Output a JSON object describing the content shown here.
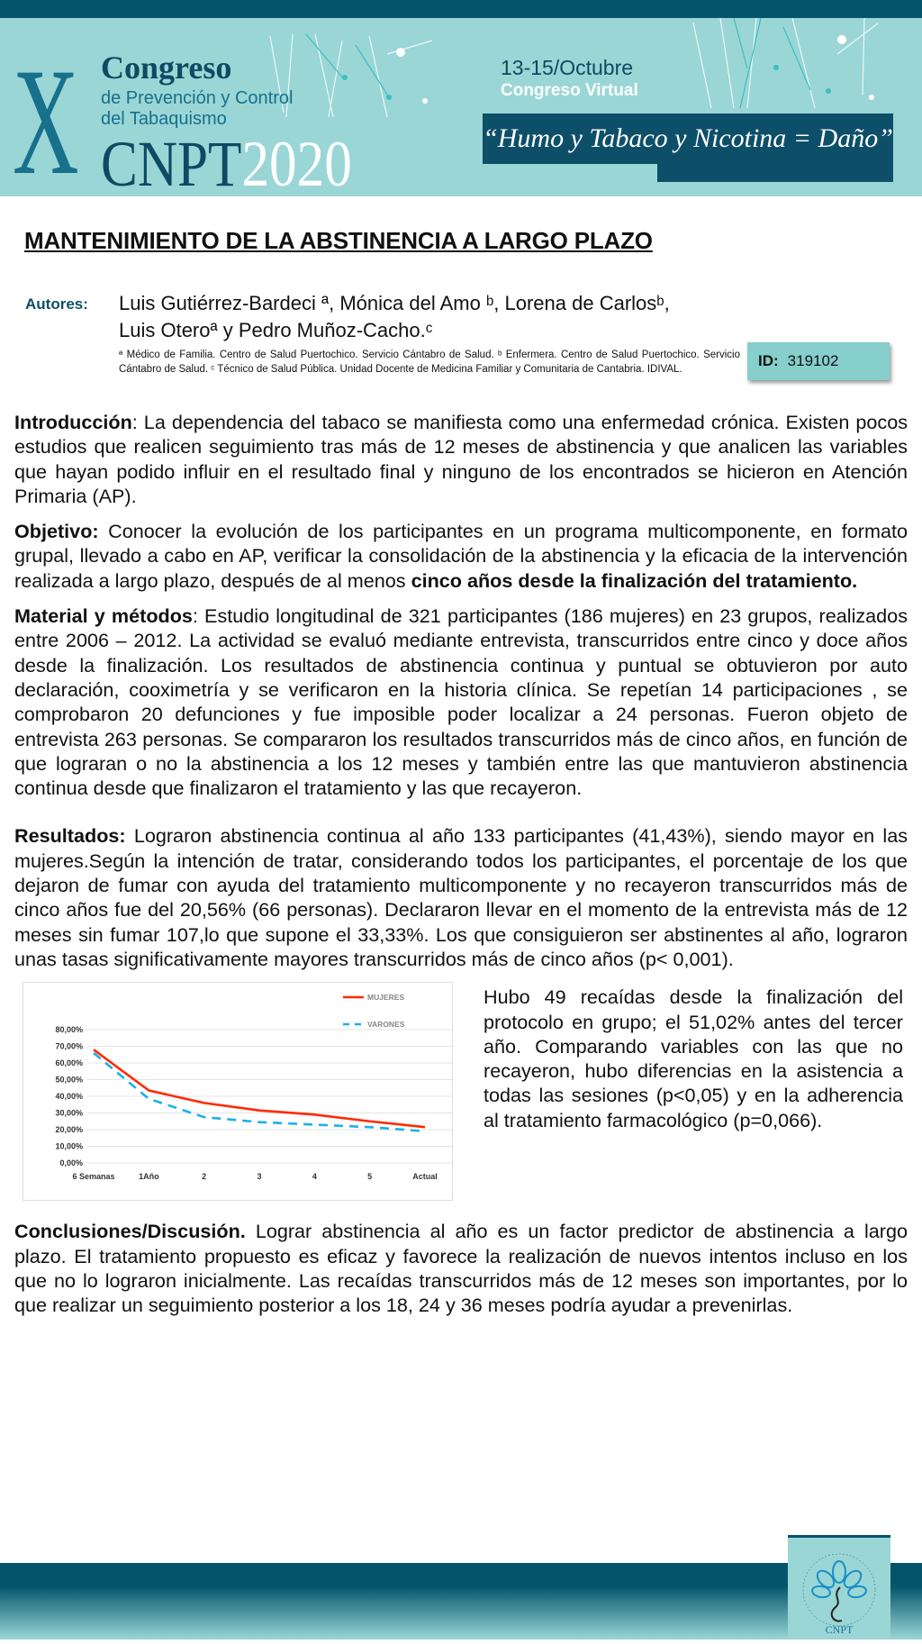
{
  "header": {
    "numeral": "X",
    "congreso": "Congreso",
    "subtitle_line1": "de Prevención y Control",
    "subtitle_line2": "del Tabaquismo",
    "acronym": "CNPT",
    "year": "2020",
    "dates": "13-15/Octubre",
    "mode": "Congreso Virtual",
    "slogan": "“Humo y Tabaco y Nicotina = Daño”"
  },
  "title": "MANTENIMIENTO DE LA ABSTINENCIA A LARGO PLAZO",
  "authors_label": "Autores:",
  "authors": "Luis Gutiérrez-Bardeci ª, Mónica del Amo ᵇ, Lorena de Carlosᵇ, Luis Oteroª y Pedro Muñoz-Cacho.ᶜ",
  "affiliations": "ª Médico de Familia. Centro de Salud Puertochico. Servicio Cántabro de Salud. ᵇ Enfermera. Centro de Salud Puertochico. Servicio Cántabro de Salud. ᶜ Técnico de Salud Pública. Unidad Docente de Medicina Familiar y Comunitaria de Cantabria. IDIVAL.",
  "id_label": "ID:",
  "id_value": "319102",
  "intro": {
    "label": "Introducción",
    "text": ": La dependencia del tabaco se manifiesta como una enfermedad crónica. Existen pocos estudios que realicen seguimiento tras más de 12 meses de abstinencia y que analicen las variables que hayan podido influir en el resultado final y ninguno de los encontrados se hicieron en Atención Primaria (AP)."
  },
  "objetivo": {
    "label": "Objetivo:",
    "text": " Conocer la evolución de los participantes en un programa multicomponente, en formato grupal, llevado a cabo en AP, verificar la consolidación de la abstinencia y la eficacia de la intervención realizada a largo plazo, después de al menos ",
    "bold": "cinco años desde la finalización del tratamiento."
  },
  "metodos": {
    "label": "Material y métodos",
    "text": ": Estudio longitudinal de 321 participantes (186 mujeres) en 23 grupos, realizados entre 2006 – 2012.  La actividad se evaluó mediante entrevista, transcurridos entre cinco y doce años desde la finalización. Los resultados de abstinencia continua y puntual se obtuvieron por auto declaración, cooximetría y se verificaron en la historia clínica. Se repetían 14 participaciones , se comprobaron 20 defunciones y fue imposible poder  localizar a 24 personas. Fueron objeto de entrevista 263 personas. Se compararon los resultados transcurridos más de cinco años, en función de que lograran o no la abstinencia a los 12 meses y también entre las que mantuvieron abstinencia continua desde que finalizaron el tratamiento y las que recayeron."
  },
  "resultados": {
    "label": "Resultados:",
    "text": " Lograron abstinencia continua al año 133 participantes (41,43%), siendo mayor en las mujeres.Según la intención de tratar, considerando todos los participantes, el porcentaje de los que dejaron de fumar con ayuda del tratamiento multicomponente y no recayeron transcurridos más de cinco años fue del 20,56% (66 personas). Declararon llevar en el momento de la entrevista más de 12 meses sin fumar 107,lo que supone el 33,33%. Los que consiguieron ser abstinentes al año, lograron unas tasas significativamente mayores transcurridos más de cinco años (p< 0,001)."
  },
  "recaidas": "Hubo 49 recaídas desde la finalización del protocolo en grupo; el 51,02% antes del    tercer año. Comparando variables con las que no recayeron, hubo diferencias en la asistencia a todas las sesiones (p<0,05) y en la adherencia al tratamiento farmacológico (p=0,066).",
  "conclusiones": {
    "label": "Conclusiones/Discusión.",
    "text": " Lograr abstinencia al año es un factor predictor de abstinencia a largo plazo. El tratamiento propuesto es eficaz y favorece la realización de nuevos intentos incluso en los que no lo lograron inicialmente. Las recaídas transcurridos más de 12 meses son importantes, por lo que realizar un seguimiento posterior a los 18, 24 y 36 meses podría ayudar a prevenirlas."
  },
  "logo": {
    "ring_text": "COMITE NACIONAL PARA LA PREVENCION DEL TABAQUISMO",
    "acronym": "CNPT"
  },
  "colors": {
    "dark_teal": "#04546c",
    "light_teal": "#9ad6d5",
    "mujeres": "#ff2a00",
    "varones": "#1ab0ec"
  },
  "chart_data": {
    "type": "line",
    "categories": [
      "6 Semanas",
      "1Año",
      "2",
      "3",
      "4",
      "5",
      "Actual"
    ],
    "yticks": [
      "0,00%",
      "10,00%",
      "20,00%",
      "30,00%",
      "40,00%",
      "50,00%",
      "60,00%",
      "70,00%",
      "80,00%"
    ],
    "ylim": [
      0,
      80
    ],
    "grid": true,
    "legend": "top-right",
    "series": [
      {
        "name": "MUJERES",
        "values": [
          68,
          43.5,
          36,
          31.5,
          29,
          25,
          21.5
        ],
        "style": "solid"
      },
      {
        "name": "VARONES",
        "values": [
          66,
          38.5,
          27.5,
          24.5,
          23,
          21.5,
          19
        ],
        "style": "dashed"
      }
    ]
  }
}
